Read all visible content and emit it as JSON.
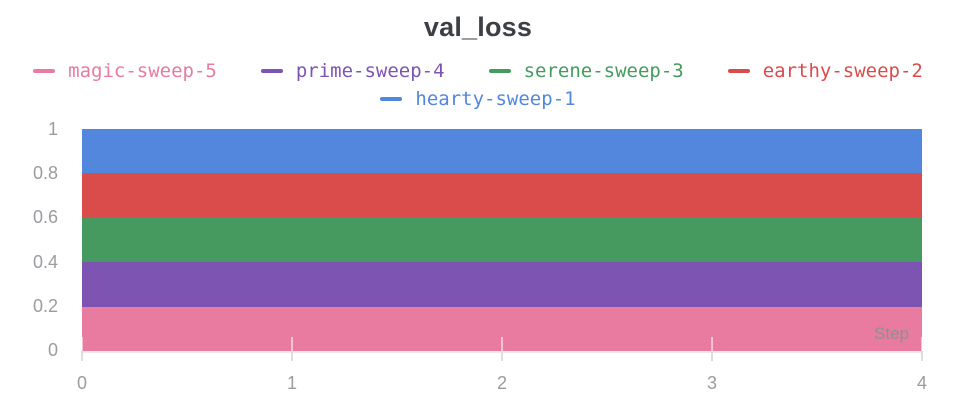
{
  "title": "val_loss",
  "x_axis_title": "Step",
  "legend": {
    "rows": [
      [
        0,
        1,
        2,
        3
      ],
      [
        4
      ]
    ]
  },
  "colors": {
    "title_text": "#3B4045",
    "axis_text": "#9A9CA1",
    "step_label_text": "#8E9095",
    "axis_line": "#EAEAED",
    "tick": "#DCDCE1",
    "background": "#FFFFFF"
  },
  "chart_data": {
    "type": "area",
    "stacked": true,
    "title": "val_loss",
    "xlabel": "Step",
    "ylabel": "",
    "x": [
      0,
      1,
      2,
      3,
      4
    ],
    "xlim": [
      0,
      4
    ],
    "ylim": [
      0,
      1
    ],
    "xticks": [
      0,
      1,
      2,
      3,
      4
    ],
    "xtick_labels": [
      "0",
      "1",
      "2",
      "3",
      "4"
    ],
    "yticks": [
      0,
      0.2,
      0.4,
      0.6,
      0.8,
      1
    ],
    "ytick_labels": [
      "0",
      "0.2",
      "0.4",
      "0.6",
      "0.8",
      "1"
    ],
    "grid": false,
    "legend_position": "top-center",
    "series": [
      {
        "name": "magic-sweep-5",
        "color": "#E87B9F",
        "band": [
          0.0,
          0.2
        ],
        "values": [
          0.2,
          0.2,
          0.2,
          0.2,
          0.2
        ]
      },
      {
        "name": "prime-sweep-4",
        "color": "#7D54B2",
        "band": [
          0.2,
          0.4
        ],
        "values": [
          0.2,
          0.2,
          0.2,
          0.2,
          0.2
        ]
      },
      {
        "name": "serene-sweep-3",
        "color": "#479A5F",
        "band": [
          0.4,
          0.6
        ],
        "values": [
          0.2,
          0.2,
          0.2,
          0.2,
          0.2
        ]
      },
      {
        "name": "earthy-sweep-2",
        "color": "#DA4C4C",
        "band": [
          0.6,
          0.8
        ],
        "values": [
          0.2,
          0.2,
          0.2,
          0.2,
          0.2
        ]
      },
      {
        "name": "hearty-sweep-1",
        "color": "#5387DD",
        "band": [
          0.8,
          1.0
        ],
        "values": [
          0.2,
          0.2,
          0.2,
          0.2,
          0.2
        ]
      }
    ]
  }
}
